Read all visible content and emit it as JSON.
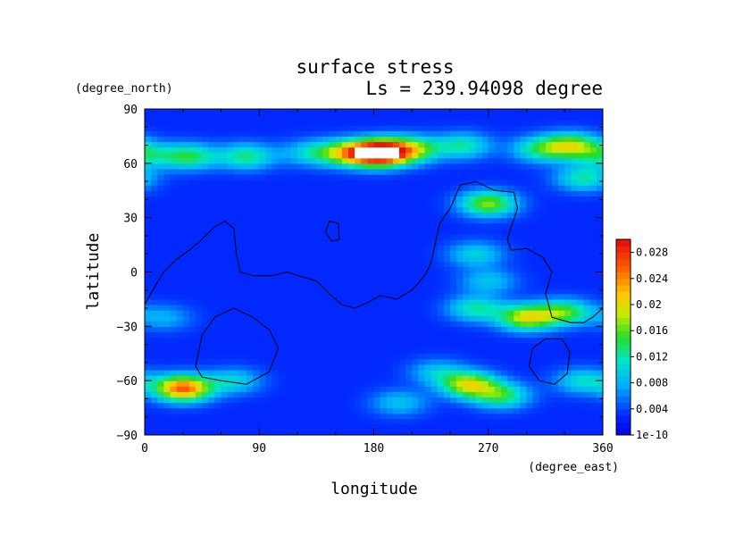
{
  "chart_data": {
    "type": "heatmap",
    "title": "surface stress",
    "subtitle": "Ls = 239.94098 degree",
    "xlabel": "longitude",
    "ylabel": "latitude",
    "x_unit": "(degree_east)",
    "y_unit": "(degree_north)",
    "xlim": [
      0,
      360
    ],
    "ylim": [
      -90,
      90
    ],
    "x_ticks": [
      0,
      90,
      180,
      270,
      360
    ],
    "x_tick_labels": [
      "0",
      "90",
      "180",
      "270",
      "360"
    ],
    "y_ticks": [
      90,
      60,
      30,
      0,
      -30,
      -60,
      -90
    ],
    "y_tick_labels": [
      "90",
      "60",
      "30",
      "0",
      "−30",
      "−60",
      "−90"
    ],
    "colorbar": {
      "min": 0,
      "max": 0.03,
      "tick_values": [
        0,
        0.004,
        0.008,
        0.012,
        0.016,
        0.02,
        0.024,
        0.028
      ],
      "tick_labels": [
        "1e-10",
        "0.004",
        "0.008",
        "0.012",
        "0.016",
        "0.02",
        "0.024",
        "0.028"
      ]
    },
    "hotspots": [
      {
        "lon": 0,
        "lat": 65,
        "value": 0.011
      },
      {
        "lon": 35,
        "lat": 64,
        "value": 0.014
      },
      {
        "lon": 80,
        "lat": 64,
        "value": 0.013
      },
      {
        "lon": 130,
        "lat": 66,
        "value": 0.01
      },
      {
        "lon": 160,
        "lat": 66,
        "value": 0.018
      },
      {
        "lon": 185,
        "lat": 66,
        "value": 0.034
      },
      {
        "lon": 210,
        "lat": 68,
        "value": 0.016
      },
      {
        "lon": 250,
        "lat": 70,
        "value": 0.012
      },
      {
        "lon": 310,
        "lat": 68,
        "value": 0.012
      },
      {
        "lon": 335,
        "lat": 70,
        "value": 0.017
      },
      {
        "lon": 345,
        "lat": 52,
        "value": 0.012
      },
      {
        "lon": 270,
        "lat": 38,
        "value": 0.017
      },
      {
        "lon": 260,
        "lat": 10,
        "value": 0.01
      },
      {
        "lon": 270,
        "lat": -5,
        "value": 0.009
      },
      {
        "lon": 260,
        "lat": -20,
        "value": 0.012
      },
      {
        "lon": 300,
        "lat": -25,
        "value": 0.019
      },
      {
        "lon": 330,
        "lat": -22,
        "value": 0.015
      },
      {
        "lon": 15,
        "lat": -25,
        "value": 0.008
      },
      {
        "lon": 30,
        "lat": -64,
        "value": 0.026
      },
      {
        "lon": 70,
        "lat": -60,
        "value": 0.01
      },
      {
        "lon": 255,
        "lat": -62,
        "value": 0.019
      },
      {
        "lon": 280,
        "lat": -68,
        "value": 0.014
      },
      {
        "lon": 230,
        "lat": -55,
        "value": 0.009
      },
      {
        "lon": 345,
        "lat": -60,
        "value": 0.011
      },
      {
        "lon": 200,
        "lat": -72,
        "value": 0.009
      }
    ],
    "background_value": 0.003,
    "contours": [
      {
        "name": "continent",
        "closed": false,
        "points": [
          [
            0,
            -18
          ],
          [
            8,
            -8
          ],
          [
            15,
            0
          ],
          [
            25,
            7
          ],
          [
            35,
            12
          ],
          [
            45,
            18
          ],
          [
            55,
            25
          ],
          [
            63,
            28
          ],
          [
            70,
            24
          ],
          [
            72,
            10
          ],
          [
            75,
            0
          ],
          [
            85,
            -2
          ],
          [
            100,
            -2
          ],
          [
            112,
            0
          ],
          [
            125,
            -3
          ],
          [
            135,
            -5
          ],
          [
            145,
            -12
          ],
          [
            155,
            -18
          ],
          [
            165,
            -20
          ],
          [
            175,
            -17
          ],
          [
            185,
            -13
          ],
          [
            198,
            -15
          ],
          [
            210,
            -10
          ],
          [
            220,
            -2
          ],
          [
            225,
            5
          ],
          [
            228,
            15
          ],
          [
            232,
            27
          ],
          [
            240,
            35
          ],
          [
            248,
            48
          ],
          [
            260,
            50
          ],
          [
            275,
            45
          ],
          [
            290,
            44
          ],
          [
            293,
            35
          ],
          [
            288,
            25
          ],
          [
            285,
            18
          ],
          [
            288,
            12
          ],
          [
            300,
            13
          ],
          [
            313,
            8
          ],
          [
            320,
            0
          ],
          [
            315,
            -12
          ],
          [
            320,
            -25
          ],
          [
            335,
            -28
          ],
          [
            345,
            -28
          ],
          [
            352,
            -25
          ],
          [
            360,
            -20
          ]
        ]
      },
      {
        "name": "island",
        "closed": true,
        "points": [
          [
            142,
            22
          ],
          [
            145,
            28
          ],
          [
            152,
            27
          ],
          [
            153,
            18
          ],
          [
            147,
            17
          ]
        ]
      },
      {
        "name": "basin-southwest",
        "closed": true,
        "points": [
          [
            40,
            -52
          ],
          [
            45,
            -35
          ],
          [
            55,
            -25
          ],
          [
            70,
            -20
          ],
          [
            85,
            -25
          ],
          [
            98,
            -32
          ],
          [
            105,
            -42
          ],
          [
            98,
            -55
          ],
          [
            80,
            -62
          ],
          [
            60,
            -60
          ],
          [
            45,
            -58
          ]
        ]
      },
      {
        "name": "basin-southeast",
        "closed": true,
        "points": [
          [
            302,
            -52
          ],
          [
            305,
            -42
          ],
          [
            315,
            -37
          ],
          [
            328,
            -37
          ],
          [
            334,
            -44
          ],
          [
            332,
            -56
          ],
          [
            322,
            -62
          ],
          [
            310,
            -60
          ]
        ]
      }
    ]
  }
}
